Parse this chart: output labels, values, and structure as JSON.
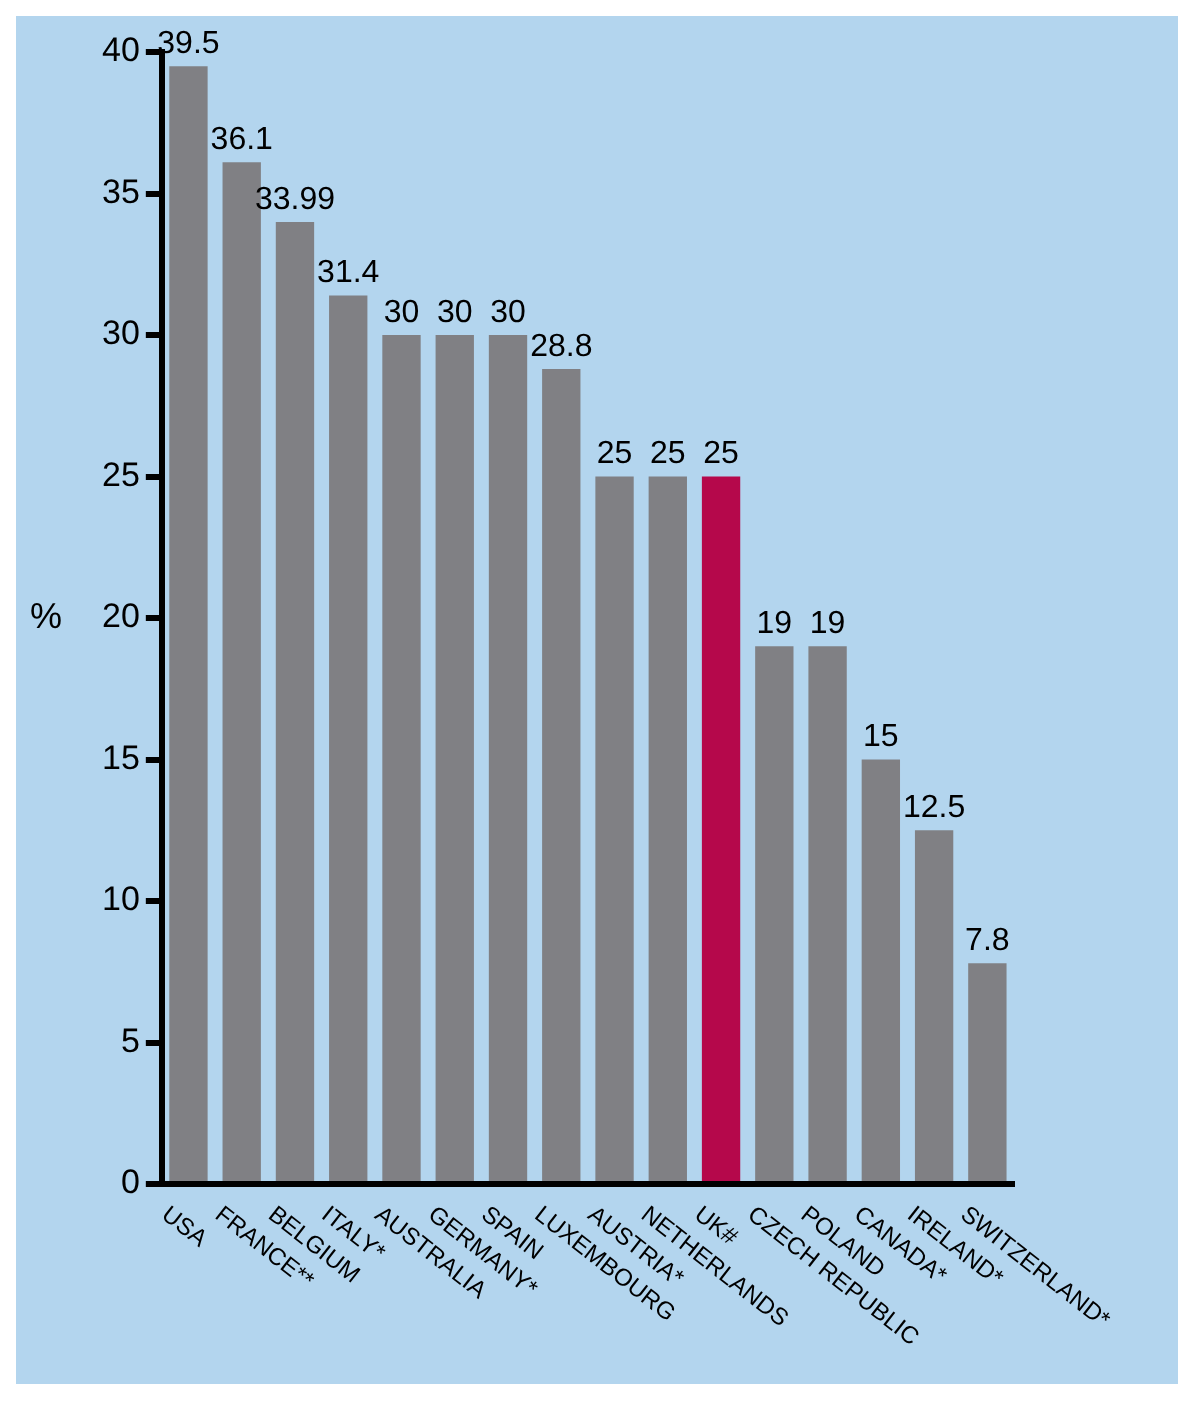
{
  "chart_data": {
    "type": "bar",
    "ylabel": "%",
    "categories": [
      "USA",
      "FRANCE**",
      "BELGIUM",
      "ITALY*",
      "AUSTRALIA",
      "GERMANY*",
      "SPAIN",
      "LUXEMBOURG",
      "AUSTRIA*",
      "NETHERLANDS",
      "UK#",
      "CZECH REPUBLIC",
      "POLAND",
      "CANADA*",
      "IRELAND*",
      "SWITZERLAND*"
    ],
    "values": [
      39.5,
      36.1,
      33.99,
      31.4,
      30,
      30,
      30,
      28.8,
      25,
      25,
      25,
      19,
      19,
      15,
      12.5,
      7.8
    ],
    "colors": [
      "#808084",
      "#808084",
      "#808084",
      "#808084",
      "#808084",
      "#808084",
      "#808084",
      "#808084",
      "#808084",
      "#808084",
      "#b5084b",
      "#808084",
      "#808084",
      "#808084",
      "#808084",
      "#808084"
    ],
    "ylim": [
      0,
      40
    ],
    "yticks": [
      0,
      5,
      10,
      15,
      20,
      25,
      30,
      35,
      40
    ],
    "grid": false,
    "legend": false,
    "data_labels": true
  }
}
